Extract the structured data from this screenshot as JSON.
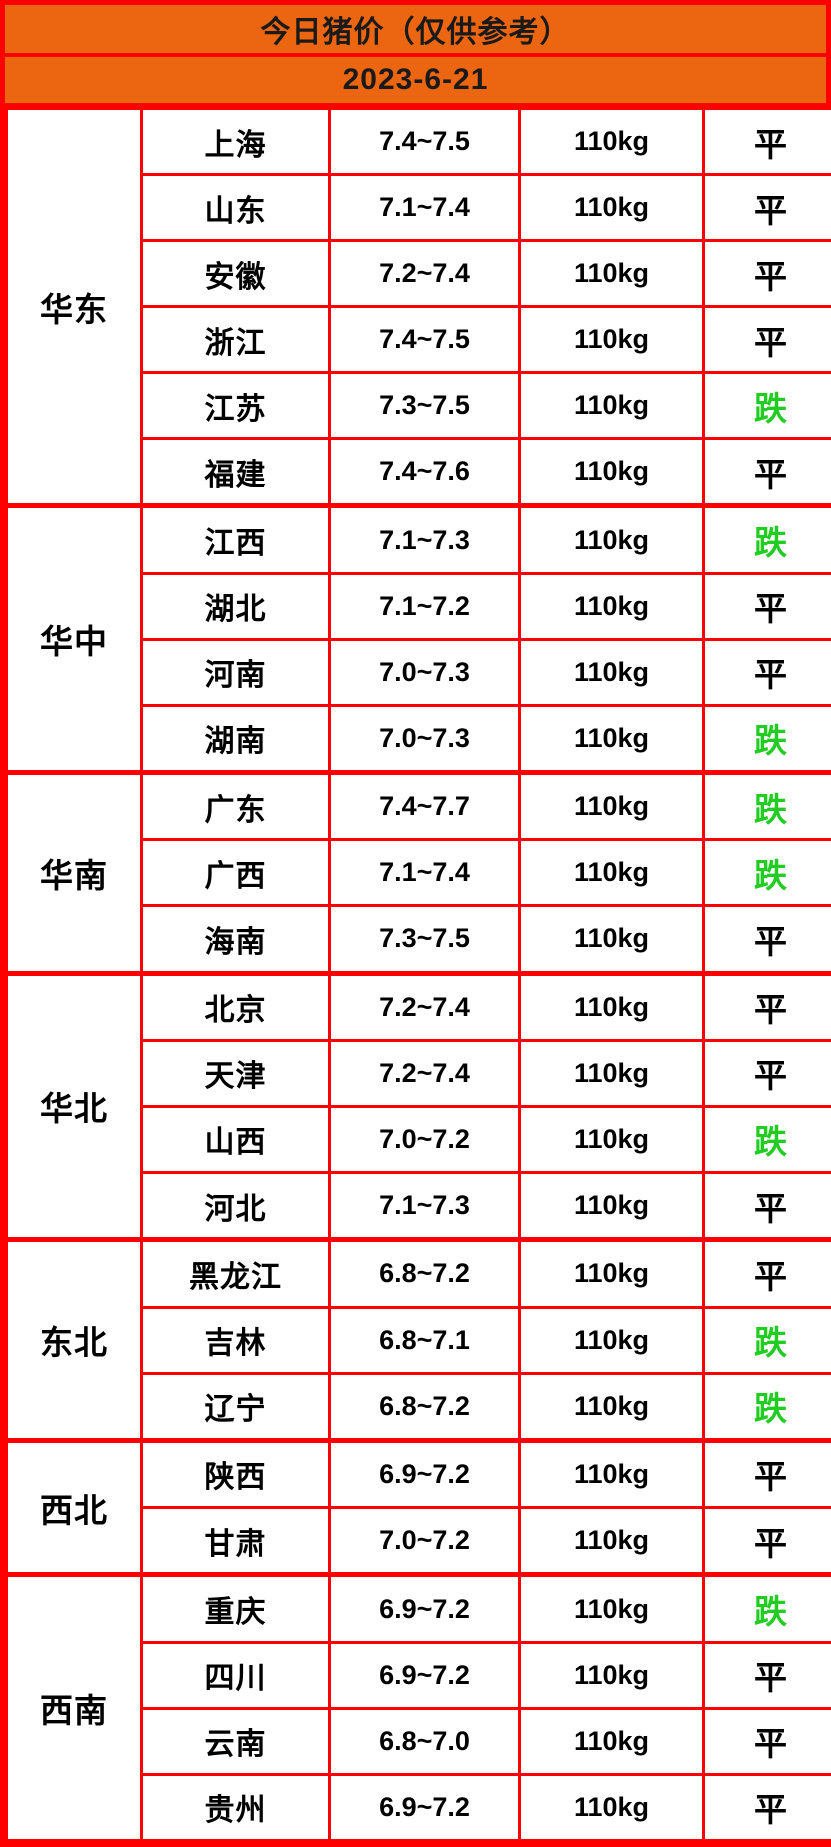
{
  "header": {
    "title": "今日猪价（仅供参考）",
    "date": "2023-6-21"
  },
  "colors": {
    "header_bg": "#ec6611",
    "border": "#fe0000",
    "text": "#000000",
    "down_green": "#22cc22",
    "cell_bg": "#ffffff"
  },
  "trend_legend": {
    "flat": "平",
    "down": "跌"
  },
  "chart_data": {
    "type": "table",
    "title": "今日猪价（仅供参考）",
    "subtitle": "2023-6-21",
    "regions": [
      {
        "name": "华东",
        "rows": [
          {
            "province": "上海",
            "price": "7.4~7.5",
            "weight": "110kg",
            "trend": "平"
          },
          {
            "province": "山东",
            "price": "7.1~7.4",
            "weight": "110kg",
            "trend": "平"
          },
          {
            "province": "安徽",
            "price": "7.2~7.4",
            "weight": "110kg",
            "trend": "平"
          },
          {
            "province": "浙江",
            "price": "7.4~7.5",
            "weight": "110kg",
            "trend": "平"
          },
          {
            "province": "江苏",
            "price": "7.3~7.5",
            "weight": "110kg",
            "trend": "跌"
          },
          {
            "province": "福建",
            "price": "7.4~7.6",
            "weight": "110kg",
            "trend": "平"
          }
        ]
      },
      {
        "name": "华中",
        "rows": [
          {
            "province": "江西",
            "price": "7.1~7.3",
            "weight": "110kg",
            "trend": "跌"
          },
          {
            "province": "湖北",
            "price": "7.1~7.2",
            "weight": "110kg",
            "trend": "平"
          },
          {
            "province": "河南",
            "price": "7.0~7.3",
            "weight": "110kg",
            "trend": "平"
          },
          {
            "province": "湖南",
            "price": "7.0~7.3",
            "weight": "110kg",
            "trend": "跌"
          }
        ]
      },
      {
        "name": "华南",
        "rows": [
          {
            "province": "广东",
            "price": "7.4~7.7",
            "weight": "110kg",
            "trend": "跌"
          },
          {
            "province": "广西",
            "price": "7.1~7.4",
            "weight": "110kg",
            "trend": "跌"
          },
          {
            "province": "海南",
            "price": "7.3~7.5",
            "weight": "110kg",
            "trend": "平"
          }
        ]
      },
      {
        "name": "华北",
        "rows": [
          {
            "province": "北京",
            "price": "7.2~7.4",
            "weight": "110kg",
            "trend": "平"
          },
          {
            "province": "天津",
            "price": "7.2~7.4",
            "weight": "110kg",
            "trend": "平"
          },
          {
            "province": "山西",
            "price": "7.0~7.2",
            "weight": "110kg",
            "trend": "跌"
          },
          {
            "province": "河北",
            "price": "7.1~7.3",
            "weight": "110kg",
            "trend": "平"
          }
        ]
      },
      {
        "name": "东北",
        "rows": [
          {
            "province": "黑龙江",
            "price": "6.8~7.2",
            "weight": "110kg",
            "trend": "平"
          },
          {
            "province": "吉林",
            "price": "6.8~7.1",
            "weight": "110kg",
            "trend": "跌"
          },
          {
            "province": "辽宁",
            "price": "6.8~7.2",
            "weight": "110kg",
            "trend": "跌"
          }
        ]
      },
      {
        "name": "西北",
        "rows": [
          {
            "province": "陕西",
            "price": "6.9~7.2",
            "weight": "110kg",
            "trend": "平"
          },
          {
            "province": "甘肃",
            "price": "7.0~7.2",
            "weight": "110kg",
            "trend": "平"
          }
        ]
      },
      {
        "name": "西南",
        "rows": [
          {
            "province": "重庆",
            "price": "6.9~7.2",
            "weight": "110kg",
            "trend": "跌"
          },
          {
            "province": "四川",
            "price": "6.9~7.2",
            "weight": "110kg",
            "trend": "平"
          },
          {
            "province": "云南",
            "price": "6.8~7.0",
            "weight": "110kg",
            "trend": "平"
          },
          {
            "province": "贵州",
            "price": "6.9~7.2",
            "weight": "110kg",
            "trend": "平"
          }
        ]
      }
    ]
  }
}
